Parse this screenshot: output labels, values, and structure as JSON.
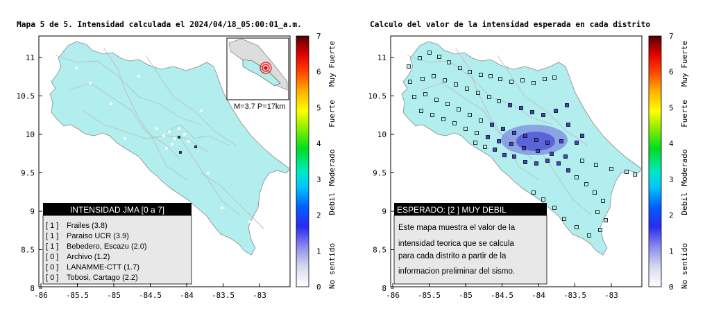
{
  "left_map": {
    "title": "Mapa 5 de 5. Intensidad calculada el 2024/04/18_05:00:01_a.m.",
    "inset_caption": "M=3.7 P=17km",
    "legend_header": "INTENSIDAD JMA [0 a 7]",
    "stations": [
      {
        "code": "[ 1 ]",
        "name": "Frailes (3.8)"
      },
      {
        "code": "[ 1 ]",
        "name": "Paraiso UCR (3.9)"
      },
      {
        "code": "[ 1 ]",
        "name": "Bebedero, Escazu (2.0)"
      },
      {
        "code": "[ 0 ]",
        "name": "Archivo (1.2)"
      },
      {
        "code": "[ 0 ]",
        "name": "LANAMME-CTT (1.7)"
      },
      {
        "code": "[ 0 ]",
        "name": "Tobosi, Cartago (2.2)"
      }
    ]
  },
  "right_map": {
    "title": "Calculo del valor de la intensidad esperada en cada distrito",
    "legend_header": "ESPERADO: [2 ] MUY DEBIL",
    "description_lines": [
      "Este mapa muestra el valor de la",
      "intensidad teorica que se calcula",
      "para cada distrito a partir de la",
      "informacion preliminar del sismo."
    ]
  },
  "axes": {
    "x_ticks": [
      "-86",
      "-85.5",
      "-85",
      "-84.5",
      "-84",
      "-83.5",
      "-83"
    ],
    "y_ticks": [
      "11",
      "10.5",
      "10",
      "9.5",
      "9",
      "8.5",
      "8"
    ]
  },
  "colorbar": {
    "ticks": [
      "0",
      "1",
      "2",
      "3",
      "4",
      "5",
      "6",
      "7"
    ],
    "category_labels": [
      "No sentido",
      "Debil",
      "Moderado",
      "Fuerte",
      "Muy Fuerte"
    ]
  },
  "colors": {
    "land": "#b2eeee",
    "sea": "#ffffff",
    "legend_header_bg": "#000000",
    "legend_body_bg": "#e8e8e8",
    "epicenter": "#ff0000",
    "district_square": "#4a3fd0"
  }
}
